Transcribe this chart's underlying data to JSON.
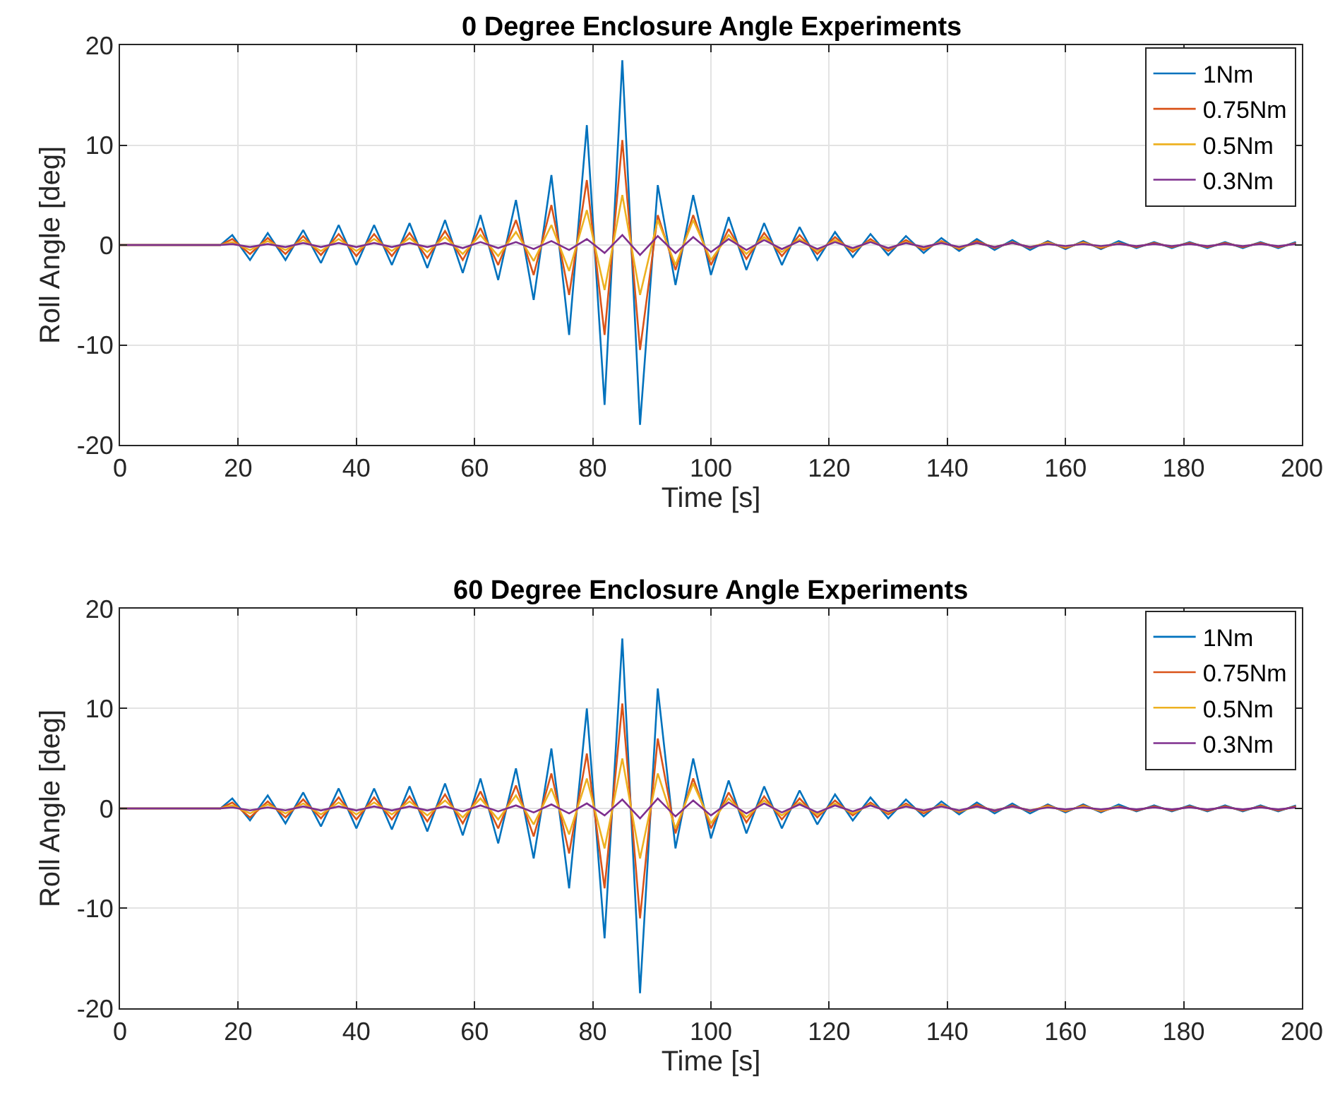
{
  "chart_data": [
    {
      "type": "line",
      "title": "0 Degree Enclosure Angle Experiments",
      "xlabel": "Time [s]",
      "ylabel": "Roll Angle [deg]",
      "xlim": [
        0,
        200
      ],
      "xticks": [
        0,
        20,
        40,
        60,
        80,
        100,
        120,
        140,
        160,
        180,
        200
      ],
      "ylim": [
        -20,
        20
      ],
      "yticks": [
        -20,
        -10,
        0,
        10,
        20
      ],
      "grid": true,
      "legend": "top right",
      "x": [
        0,
        17,
        19,
        22,
        25,
        28,
        31,
        34,
        37,
        40,
        43,
        46,
        49,
        52,
        55,
        58,
        61,
        64,
        67,
        70,
        73,
        76,
        79,
        82,
        85,
        88,
        91,
        94,
        97,
        100,
        103,
        106,
        109,
        112,
        115,
        118,
        121,
        124,
        127,
        130,
        133,
        136,
        139,
        142,
        145,
        148,
        151,
        154,
        157,
        160,
        163,
        166,
        169,
        172,
        175,
        178,
        181,
        184,
        187,
        190,
        193,
        196,
        199
      ],
      "series": [
        {
          "name": "1Nm",
          "color": "#0072bd",
          "values": [
            0,
            0,
            1,
            -1.5,
            1.2,
            -1.5,
            1.5,
            -1.8,
            2,
            -2,
            2,
            -2,
            2.2,
            -2.3,
            2.5,
            -2.8,
            3,
            -3.5,
            4.5,
            -5.5,
            7,
            -9,
            12,
            -16,
            18.5,
            -18,
            6,
            -4,
            5,
            -3,
            2.8,
            -2.5,
            2.2,
            -2,
            1.8,
            -1.5,
            1.3,
            -1.2,
            1.1,
            -1,
            0.9,
            -0.8,
            0.7,
            -0.6,
            0.6,
            -0.5,
            0.5,
            -0.5,
            0.4,
            -0.4,
            0.4,
            -0.4,
            0.4,
            -0.3,
            0.3,
            -0.3,
            0.3,
            -0.3,
            0.3,
            -0.3,
            0.3,
            -0.3,
            0.3
          ]
        },
        {
          "name": "0.75Nm",
          "color": "#d95319",
          "values": [
            0,
            0,
            0.6,
            -0.9,
            0.7,
            -0.9,
            0.9,
            -1,
            1.1,
            -1.1,
            1.1,
            -1.1,
            1.2,
            -1.3,
            1.4,
            -1.5,
            1.7,
            -2,
            2.5,
            -3,
            4,
            -5,
            6.5,
            -9,
            10.5,
            -10.5,
            3,
            -2.5,
            3,
            -2,
            1.6,
            -1.4,
            1.2,
            -1.1,
            1,
            -0.9,
            0.8,
            -0.7,
            0.6,
            -0.6,
            0.5,
            -0.5,
            0.4,
            -0.4,
            0.4,
            -0.3,
            0.3,
            -0.3,
            0.3,
            -0.3,
            0.3,
            -0.3,
            0.2,
            -0.2,
            0.2,
            -0.2,
            0.2,
            -0.2,
            0.2,
            -0.2,
            0.2,
            -0.2,
            0.2
          ]
        },
        {
          "name": "0.5Nm",
          "color": "#edb120",
          "values": [
            0,
            0,
            0.3,
            -0.5,
            0.4,
            -0.5,
            0.5,
            -0.6,
            0.6,
            -0.6,
            0.6,
            -0.6,
            0.7,
            -0.7,
            0.8,
            -0.9,
            1,
            -1.1,
            1.3,
            -1.6,
            2,
            -2.6,
            3.5,
            -4.5,
            5,
            -5,
            2.5,
            -2,
            2.5,
            -1.5,
            1,
            -0.9,
            0.8,
            -0.7,
            0.6,
            -0.6,
            0.5,
            -0.5,
            0.4,
            -0.4,
            0.3,
            -0.3,
            0.3,
            -0.3,
            0.2,
            -0.2,
            0.2,
            -0.2,
            0.2,
            -0.2,
            0.2,
            -0.2,
            0.2,
            null,
            null,
            null,
            null,
            null,
            null,
            null,
            null,
            null,
            null
          ]
        },
        {
          "name": "0.3Nm",
          "color": "#7e2f8e",
          "values": [
            0,
            0,
            0.1,
            -0.2,
            0.1,
            -0.2,
            0.2,
            -0.2,
            0.2,
            -0.2,
            0.2,
            -0.2,
            0.2,
            -0.2,
            0.2,
            -0.3,
            0.3,
            -0.3,
            0.3,
            -0.4,
            0.4,
            -0.5,
            0.6,
            -0.8,
            1,
            -1,
            0.9,
            -0.8,
            0.8,
            -0.7,
            0.6,
            -0.5,
            0.5,
            -0.4,
            0.4,
            -0.4,
            0.3,
            -0.3,
            0.3,
            -0.3,
            0.2,
            -0.2,
            0.2,
            -0.2,
            0.2,
            -0.2,
            0.2,
            -0.2,
            0.1,
            -0.1,
            0.1,
            -0.1,
            0.1,
            -0.1,
            0.1,
            -0.1,
            0.1,
            -0.1,
            0.1,
            -0.1,
            0.1,
            -0.1,
            0.1
          ]
        }
      ]
    },
    {
      "type": "line",
      "title": "60 Degree Enclosure Angle Experiments",
      "xlabel": "Time [s]",
      "ylabel": "Roll Angle [deg]",
      "xlim": [
        0,
        200
      ],
      "xticks": [
        0,
        20,
        40,
        60,
        80,
        100,
        120,
        140,
        160,
        180,
        200
      ],
      "ylim": [
        -20,
        20
      ],
      "yticks": [
        -20,
        -10,
        0,
        10,
        20
      ],
      "grid": true,
      "legend": "top right",
      "x": [
        0,
        17,
        19,
        22,
        25,
        28,
        31,
        34,
        37,
        40,
        43,
        46,
        49,
        52,
        55,
        58,
        61,
        64,
        67,
        70,
        73,
        76,
        79,
        82,
        85,
        88,
        91,
        94,
        97,
        100,
        103,
        106,
        109,
        112,
        115,
        118,
        121,
        124,
        127,
        130,
        133,
        136,
        139,
        142,
        145,
        148,
        151,
        154,
        157,
        160,
        163,
        166,
        169,
        172,
        175,
        178,
        181,
        184,
        187,
        190,
        193,
        196,
        199
      ],
      "series": [
        {
          "name": "1Nm",
          "color": "#0072bd",
          "values": [
            0,
            0,
            1,
            -1.2,
            1.3,
            -1.5,
            1.6,
            -1.8,
            2,
            -2,
            2,
            -2.1,
            2.2,
            -2.3,
            2.5,
            -2.7,
            3,
            -3.5,
            4,
            -5,
            6,
            -8,
            10,
            -13,
            17,
            -18.5,
            12,
            -4,
            5,
            -3,
            2.8,
            -2.5,
            2.2,
            -2,
            1.8,
            -1.6,
            1.4,
            -1.2,
            1.1,
            -1,
            0.9,
            -0.8,
            0.7,
            -0.6,
            0.6,
            -0.5,
            0.5,
            -0.5,
            0.4,
            -0.4,
            0.4,
            -0.4,
            0.4,
            -0.3,
            0.3,
            -0.3,
            0.3,
            -0.3,
            0.3,
            -0.3,
            0.3,
            -0.3,
            0.3
          ]
        },
        {
          "name": "0.75Nm",
          "color": "#d95319",
          "values": [
            0,
            0,
            0.6,
            -0.9,
            0.7,
            -0.9,
            0.9,
            -1,
            1.1,
            -1.1,
            1.1,
            -1.1,
            1.2,
            -1.3,
            1.4,
            -1.5,
            1.7,
            -2,
            2.3,
            -2.8,
            3.5,
            -4.5,
            5.5,
            -8,
            10.5,
            -11,
            7,
            -2.5,
            3,
            -2,
            1.6,
            -1.4,
            1.2,
            -1.1,
            1,
            -0.9,
            0.8,
            -0.7,
            0.6,
            -0.6,
            0.5,
            -0.5,
            0.4,
            -0.4,
            0.4,
            -0.3,
            0.3,
            -0.3,
            0.3,
            -0.3,
            0.3,
            -0.3,
            0.2,
            -0.2,
            0.2,
            -0.2,
            0.2,
            -0.2,
            0.2,
            -0.2,
            0.2,
            -0.2,
            0.2
          ]
        },
        {
          "name": "0.5Nm",
          "color": "#edb120",
          "values": [
            0,
            0,
            0.3,
            -0.5,
            0.4,
            -0.5,
            0.5,
            -0.6,
            0.6,
            -0.6,
            0.6,
            -0.6,
            0.7,
            -0.7,
            0.8,
            -0.9,
            1,
            -1.1,
            1.3,
            -1.6,
            2,
            -2.6,
            3,
            -4,
            5,
            -5,
            3.5,
            -2,
            2.5,
            -1.5,
            1,
            -0.9,
            0.8,
            -0.7,
            0.6,
            -0.6,
            0.5,
            -0.5,
            0.4,
            -0.4,
            0.3,
            -0.3,
            0.3,
            -0.3,
            0.2,
            -0.2,
            0.2,
            -0.2,
            0.2,
            -0.2,
            0.2,
            -0.2,
            0.2,
            null,
            null,
            null,
            null,
            null,
            null,
            null,
            null,
            null,
            null
          ]
        },
        {
          "name": "0.3Nm",
          "color": "#7e2f8e",
          "values": [
            0,
            0,
            0.1,
            -0.2,
            0.1,
            -0.2,
            0.2,
            -0.2,
            0.2,
            -0.2,
            0.2,
            -0.2,
            0.2,
            -0.2,
            0.2,
            -0.3,
            0.3,
            -0.3,
            0.3,
            -0.4,
            0.4,
            -0.5,
            0.5,
            -0.7,
            0.9,
            -1,
            1,
            -0.8,
            0.8,
            -0.7,
            0.6,
            -0.5,
            0.5,
            -0.4,
            0.4,
            -0.4,
            0.3,
            -0.3,
            0.3,
            -0.3,
            0.2,
            -0.2,
            0.2,
            -0.2,
            0.2,
            -0.2,
            0.2,
            -0.2,
            0.1,
            -0.1,
            0.1,
            -0.1,
            0.1,
            -0.1,
            0.1,
            -0.1,
            0.1,
            -0.1,
            0.1,
            -0.1,
            0.1,
            -0.1,
            0.1
          ]
        }
      ]
    }
  ]
}
